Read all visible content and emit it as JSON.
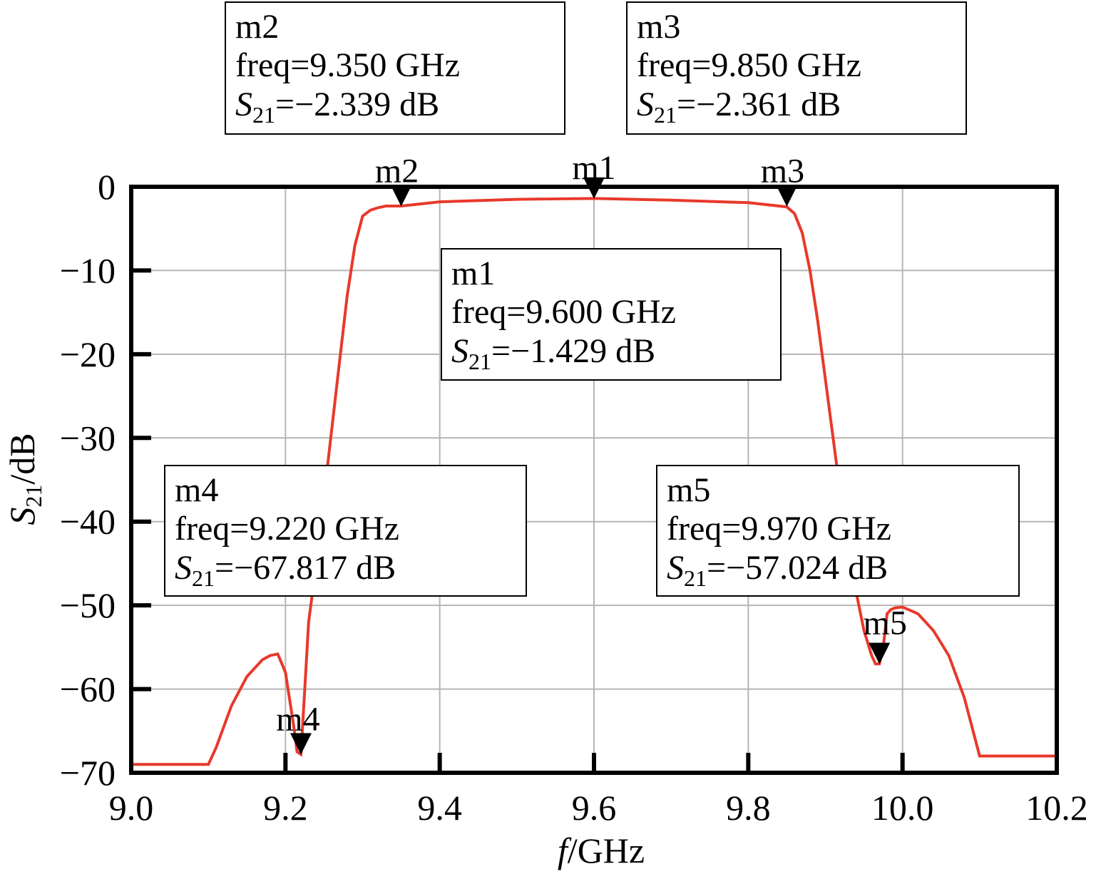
{
  "chart_data": {
    "type": "line",
    "xlabel": {
      "italic": "f",
      "rest": "/GHz"
    },
    "ylabel": {
      "italic": "S",
      "sub": "21",
      "rest": "/dB"
    },
    "xlim": [
      9.0,
      10.2
    ],
    "ylim": [
      -70,
      0
    ],
    "x_ticks": [
      "9.0",
      "9.2",
      "9.4",
      "9.6",
      "9.8",
      "10.0",
      "10.2"
    ],
    "x_tick_values": [
      9.0,
      9.2,
      9.4,
      9.6,
      9.8,
      10.0,
      10.2
    ],
    "y_ticks": [
      "0",
      "−10",
      "−20",
      "−30",
      "−40",
      "−50",
      "−60",
      "−70"
    ],
    "y_tick_values": [
      0,
      -10,
      -20,
      -30,
      -40,
      -50,
      -60,
      -70
    ],
    "grid": true,
    "line_color": "#e8392b",
    "series": [
      {
        "x": [
          9.0,
          9.05,
          9.1,
          9.11,
          9.13,
          9.15,
          9.17,
          9.18,
          9.19,
          9.2,
          9.205,
          9.21,
          9.215,
          9.22,
          9.225,
          9.23,
          9.24,
          9.25,
          9.26,
          9.27,
          9.28,
          9.29,
          9.3,
          9.31,
          9.32,
          9.33,
          9.35,
          9.4,
          9.5,
          9.6,
          9.7,
          9.8,
          9.85,
          9.86,
          9.87,
          9.88,
          9.89,
          9.9,
          9.91,
          9.92,
          9.93,
          9.94,
          9.95,
          9.96,
          9.965,
          9.97,
          9.975,
          9.98,
          9.985,
          9.99,
          10.0,
          10.02,
          10.04,
          10.06,
          10.08,
          10.1,
          10.15,
          10.2
        ],
        "y": [
          -69,
          -69,
          -69,
          -67,
          -62,
          -58.5,
          -56.5,
          -56,
          -55.8,
          -58,
          -61,
          -64,
          -67.5,
          -67.8,
          -60,
          -52,
          -45,
          -37,
          -29,
          -21,
          -13,
          -7,
          -3.5,
          -2.8,
          -2.5,
          -2.3,
          -2.3,
          -1.8,
          -1.5,
          -1.4,
          -1.6,
          -1.9,
          -2.4,
          -3.2,
          -5.5,
          -10,
          -16,
          -23,
          -30,
          -37,
          -43,
          -48.5,
          -53,
          -56,
          -57,
          -57,
          -55,
          -51,
          -50.5,
          -50.3,
          -50.2,
          -51,
          -53,
          -56,
          -61,
          -68,
          -68,
          -68
        ]
      }
    ],
    "markers": [
      {
        "id": "m1",
        "label": "m1",
        "x": 9.6,
        "y": -1.429
      },
      {
        "id": "m2",
        "label": "m2",
        "x": 9.35,
        "y": -2.339
      },
      {
        "id": "m3",
        "label": "m3",
        "x": 9.85,
        "y": -2.361
      },
      {
        "id": "m4",
        "label": "m4",
        "x": 9.22,
        "y": -67.817
      },
      {
        "id": "m5",
        "label": "m5",
        "x": 9.97,
        "y": -57.024
      }
    ],
    "annotations": [
      {
        "id": "m2",
        "title": "m2",
        "freq": "freq=9.350 GHz",
        "s_italic": "S",
        "s_sub": "21",
        "s_value": "=−2.339 dB"
      },
      {
        "id": "m3",
        "title": "m3",
        "freq": "freq=9.850 GHz",
        "s_italic": "S",
        "s_sub": "21",
        "s_value": "=−2.361 dB"
      },
      {
        "id": "m1",
        "title": "m1",
        "freq": "freq=9.600 GHz",
        "s_italic": "S",
        "s_sub": "21",
        "s_value": "=−1.429 dB"
      },
      {
        "id": "m4",
        "title": "m4",
        "freq": "freq=9.220 GHz",
        "s_italic": "S",
        "s_sub": "21",
        "s_value": "=−67.817 dB"
      },
      {
        "id": "m5",
        "title": "m5",
        "freq": "freq=9.970 GHz",
        "s_italic": "S",
        "s_sub": "21",
        "s_value": "=−57.024 dB"
      }
    ]
  }
}
